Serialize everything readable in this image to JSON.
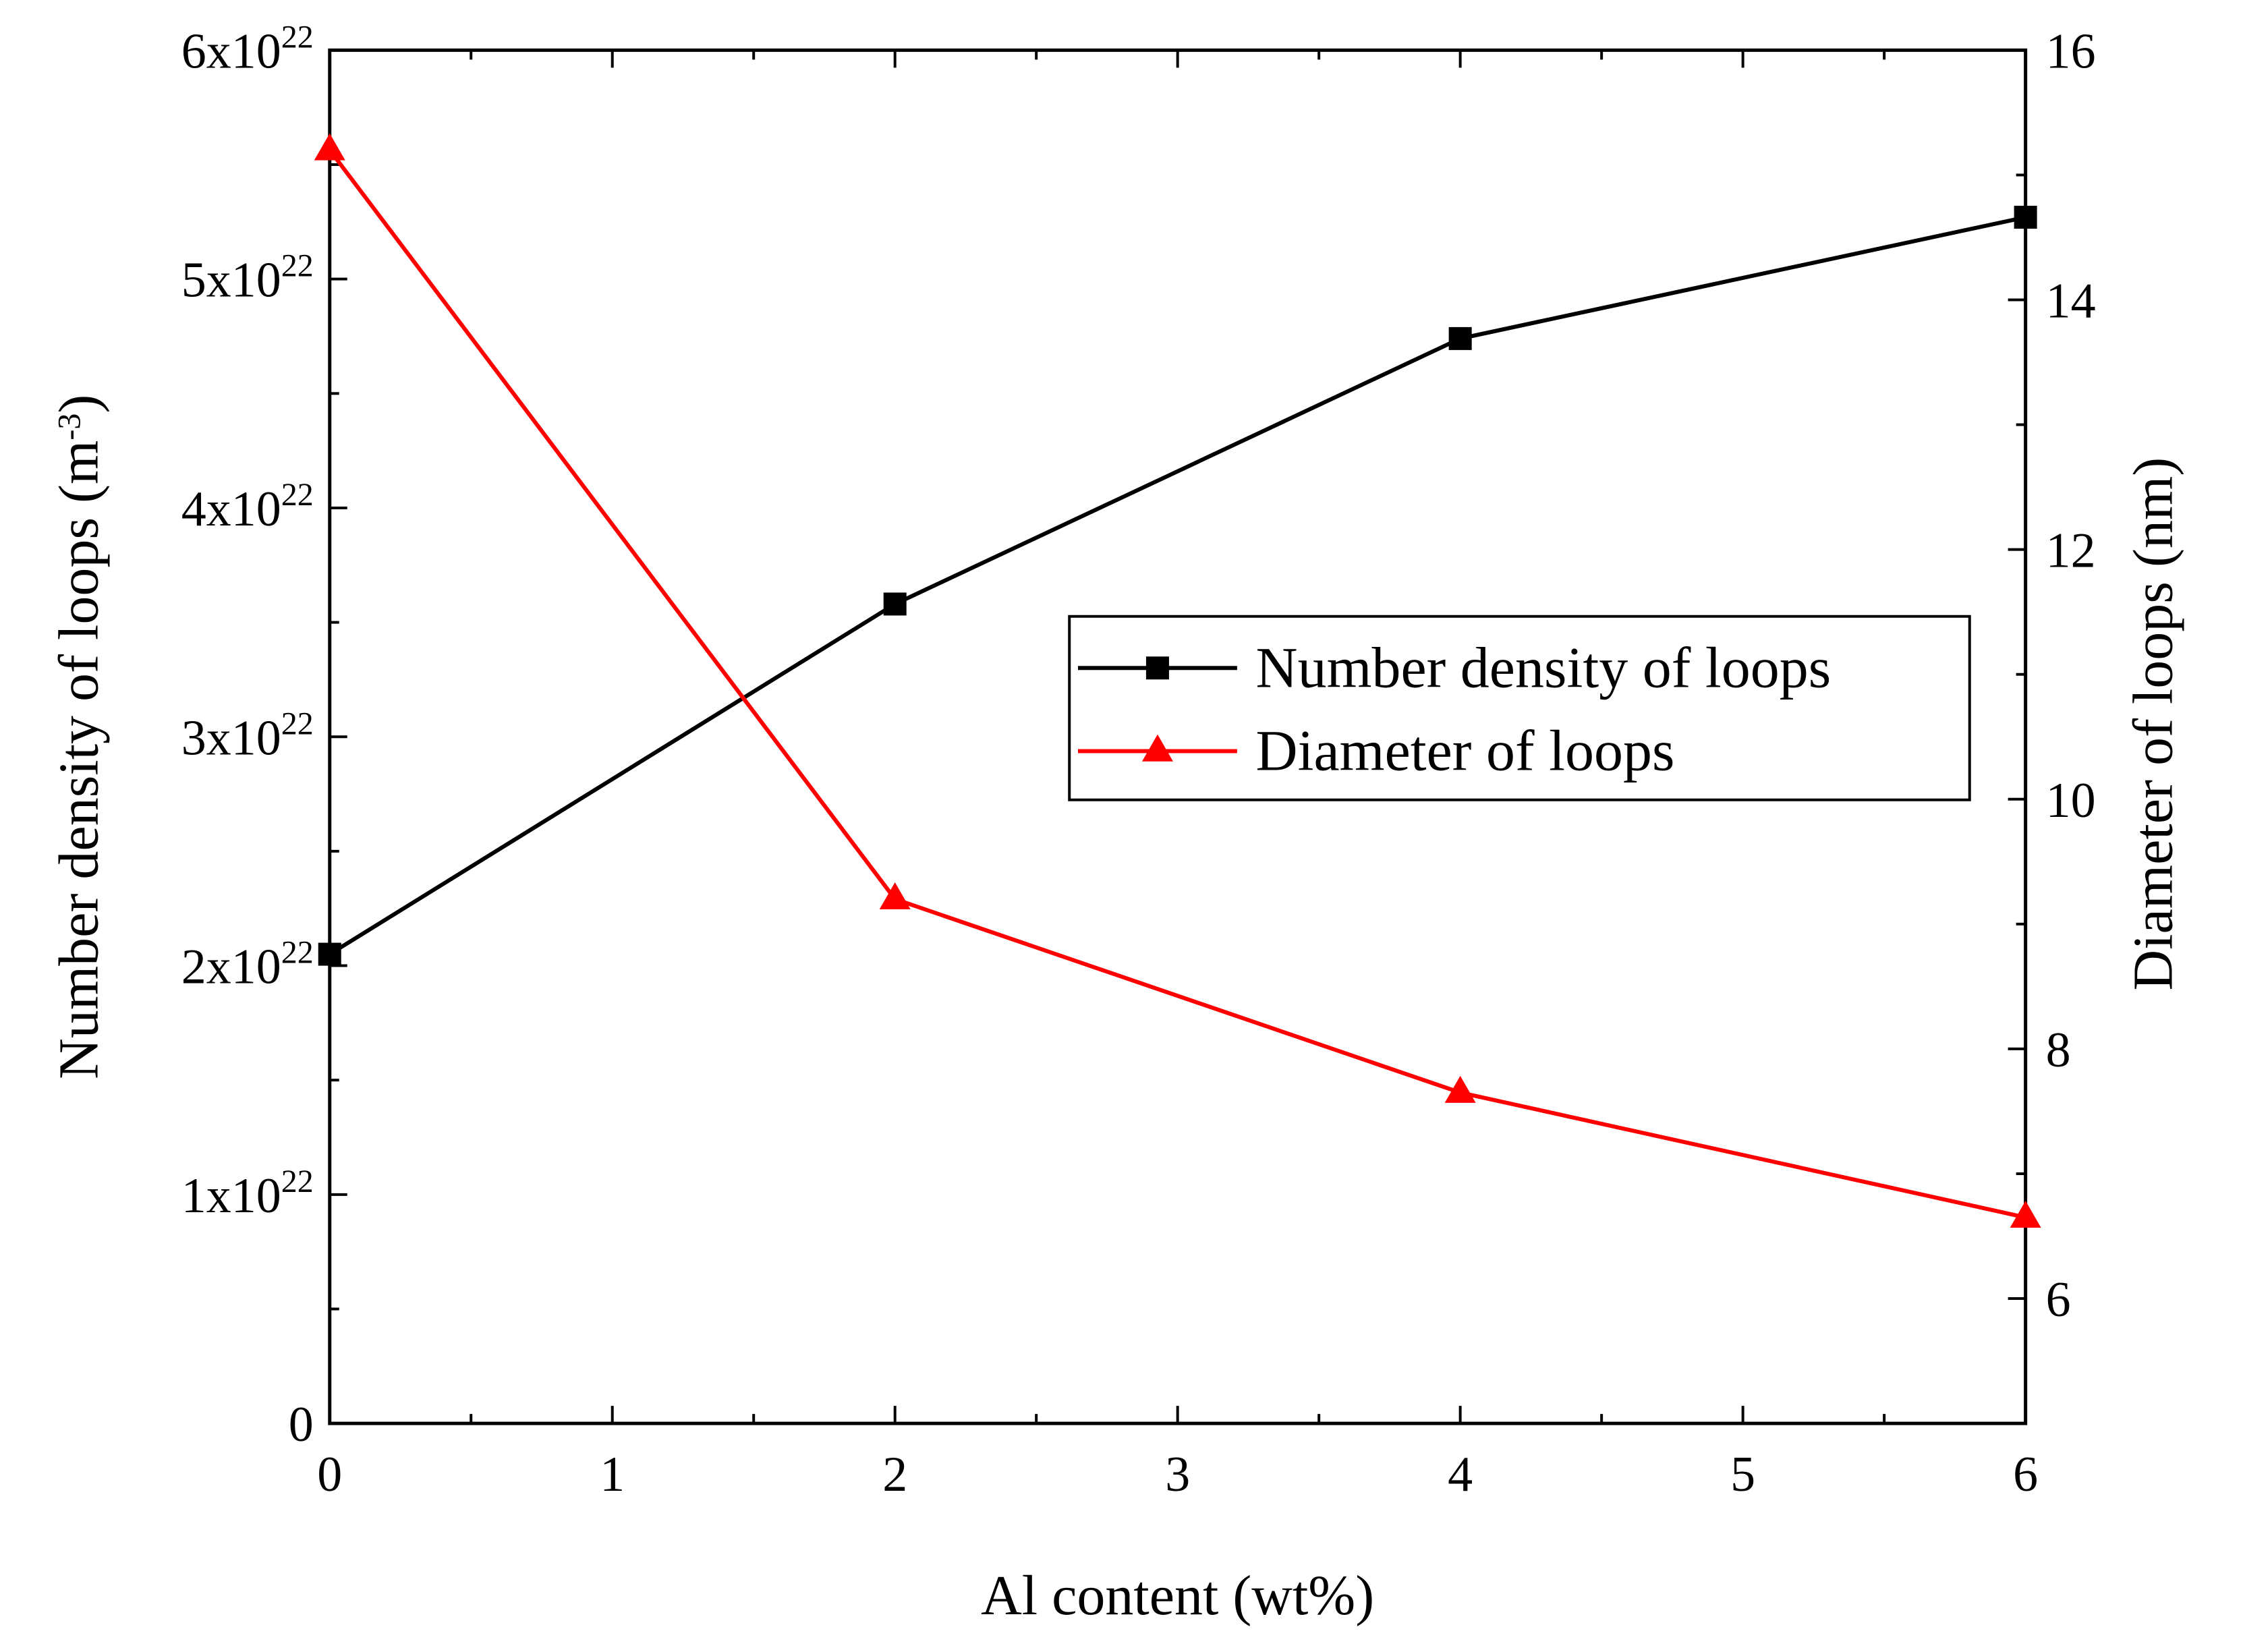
{
  "chart_data": {
    "type": "line",
    "title": "",
    "xlabel": "Al content (wt%)",
    "ylabel_left": {
      "text": "Number density of loops (m",
      "superscript": "-3",
      "suffix": ")"
    },
    "ylabel_right": "Diameter of loops (nm)",
    "xlim": [
      0,
      6
    ],
    "ylim_left": [
      0,
      6e+22
    ],
    "ylim_right": [
      5,
      16
    ],
    "x_ticks": [
      "0",
      "1",
      "2",
      "3",
      "4",
      "5",
      "6"
    ],
    "y_left_ticks": [
      {
        "value": 0,
        "base": "0",
        "exp": ""
      },
      {
        "value": 1e+22,
        "base": "1x10",
        "exp": "22"
      },
      {
        "value": 2e+22,
        "base": "2x10",
        "exp": "22"
      },
      {
        "value": 3e+22,
        "base": "3x10",
        "exp": "22"
      },
      {
        "value": 4e+22,
        "base": "4x10",
        "exp": "22"
      },
      {
        "value": 5e+22,
        "base": "5x10",
        "exp": "22"
      },
      {
        "value": 6e+22,
        "base": "6x10",
        "exp": "22"
      }
    ],
    "y_right_ticks": [
      "6",
      "8",
      "10",
      "12",
      "14",
      "16"
    ],
    "series": [
      {
        "name": "Number density of loops",
        "axis": "left",
        "color": "#000000",
        "marker": "square",
        "x": [
          0,
          2,
          4,
          6
        ],
        "y": [
          2.05e+22,
          3.58e+22,
          4.74e+22,
          5.27e+22
        ]
      },
      {
        "name": "Diameter of loops",
        "axis": "right",
        "color": "#ff0000",
        "marker": "triangle",
        "x": [
          0,
          2,
          4,
          6
        ],
        "y": [
          15.2,
          9.2,
          7.65,
          6.65
        ]
      }
    ],
    "legend_position": "center-right",
    "grid": false
  }
}
